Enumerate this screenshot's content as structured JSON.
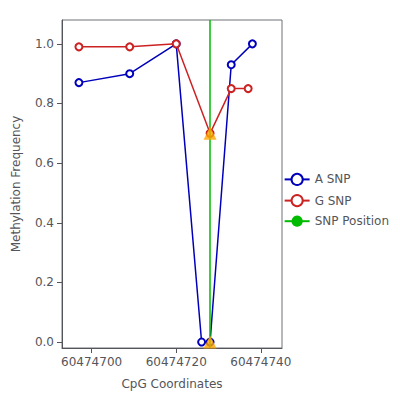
{
  "chart_data": {
    "type": "line",
    "xlabel": "CpG Coordinates",
    "ylabel": "Methylation Frequency",
    "xlim": [
      60474693,
      60474745
    ],
    "xticks": [
      60474700,
      60474720,
      60474740
    ],
    "ylim": [
      -0.02,
      1.08
    ],
    "yticks": [
      {
        "value": 0.0,
        "label": "0.0"
      },
      0.2,
      0.4,
      0.6,
      0.8,
      {
        "value": 1.0,
        "label": "1.0"
      }
    ],
    "grid": false,
    "legend": "right",
    "series": [
      {
        "name": "A SNP",
        "type": "line",
        "color": "#0000BB",
        "marker": "circle",
        "x": [
          60474697,
          60474709,
          60474720,
          60474726,
          60474728,
          60474733,
          60474738
        ],
        "values": [
          0.87,
          0.9,
          1.0,
          0.0,
          0.0,
          0.93,
          1.0
        ]
      },
      {
        "name": "G SNP",
        "type": "line",
        "color": "#CC2222",
        "marker": "circle",
        "x": [
          60474697,
          60474709,
          60474720,
          60474728,
          60474733,
          60474737
        ],
        "values": [
          0.99,
          0.99,
          1.0,
          0.7,
          0.85,
          0.85
        ]
      },
      {
        "name": "SNP Position",
        "type": "vline",
        "color": "#00BB00",
        "x": [
          60474728
        ]
      },
      {
        "type": "scatter",
        "color": "#FFA500",
        "marker": "triangle",
        "x": [
          60474728,
          60474728
        ],
        "values": [
          0.0,
          0.7
        ]
      }
    ]
  }
}
